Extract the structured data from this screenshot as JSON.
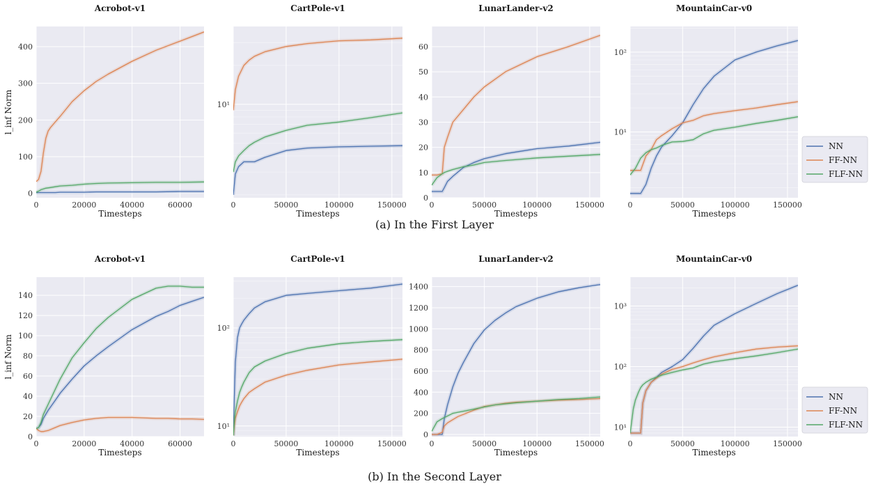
{
  "figure": {
    "legend": [
      {
        "name": "NN",
        "color": "#4c72b0"
      },
      {
        "name": "FF-NN",
        "color": "#dd8452"
      },
      {
        "name": "FLF-NN",
        "color": "#55a868"
      }
    ],
    "rows": [
      {
        "caption": "(a) In the First Layer"
      },
      {
        "caption": "(b) In the Second Layer"
      }
    ]
  },
  "chart_data": [
    {
      "type": "line",
      "title": "Acrobot-v1",
      "xlabel": "Timesteps",
      "ylabel": "l_inf Norm",
      "scale": "linear",
      "xlim": [
        0,
        70000
      ],
      "ylim": [
        -12,
        455
      ],
      "xticks": [
        0,
        20000,
        40000,
        60000
      ],
      "yticks": [
        0,
        100,
        200,
        300,
        400
      ],
      "x": [
        0,
        1000,
        2000,
        3000,
        4000,
        5000,
        6000,
        8000,
        10000,
        15000,
        20000,
        25000,
        30000,
        40000,
        50000,
        60000,
        70000
      ],
      "series": [
        {
          "name": "NN",
          "values": [
            2,
            2,
            2,
            2,
            2,
            2,
            2,
            2,
            3,
            3,
            3,
            4,
            4,
            4,
            4,
            5,
            5
          ]
        },
        {
          "name": "FF-NN",
          "values": [
            32,
            38,
            60,
            110,
            150,
            170,
            180,
            195,
            210,
            250,
            280,
            305,
            325,
            360,
            390,
            415,
            440
          ]
        },
        {
          "name": "FLF-NN",
          "values": [
            3,
            6,
            10,
            12,
            14,
            15,
            16,
            18,
            20,
            22,
            25,
            27,
            28,
            29,
            30,
            30,
            31
          ]
        }
      ]
    },
    {
      "type": "line",
      "title": "CartPole-v1",
      "xlabel": "Timesteps",
      "ylabel": "",
      "scale": "log",
      "xlim": [
        0,
        160000
      ],
      "ylim": [
        1.9,
        40
      ],
      "xticks": [
        0,
        50000,
        100000,
        150000
      ],
      "ytick_labels": [
        {
          "value": 10,
          "label": "10¹"
        }
      ],
      "x": [
        0,
        2000,
        5000,
        10000,
        15000,
        20000,
        30000,
        50000,
        70000,
        100000,
        130000,
        160000
      ],
      "series": [
        {
          "name": "NN",
          "values": [
            2.0,
            2.9,
            3.3,
            3.6,
            3.6,
            3.6,
            3.9,
            4.4,
            4.6,
            4.7,
            4.75,
            4.8
          ]
        },
        {
          "name": "FF-NN",
          "values": [
            9.0,
            13,
            16.5,
            20,
            22,
            23.5,
            25.5,
            28,
            29.5,
            31,
            31.5,
            32.5
          ]
        },
        {
          "name": "FLF-NN",
          "values": [
            3.0,
            3.6,
            4.0,
            4.4,
            4.8,
            5.1,
            5.6,
            6.3,
            6.9,
            7.3,
            7.9,
            8.6
          ]
        }
      ]
    },
    {
      "type": "line",
      "title": "LunarLander-v2",
      "xlabel": "Timesteps",
      "ylabel": "",
      "scale": "linear",
      "xlim": [
        0,
        160000
      ],
      "ylim": [
        0,
        68
      ],
      "xticks": [
        0,
        50000,
        100000,
        150000
      ],
      "yticks": [
        0,
        10,
        20,
        30,
        40,
        50,
        60
      ],
      "x": [
        0,
        5000,
        10000,
        12000,
        15000,
        20000,
        30000,
        40000,
        50000,
        70000,
        100000,
        130000,
        160000
      ],
      "series": [
        {
          "name": "NN",
          "values": [
            2.5,
            2.5,
            2.5,
            4,
            6.5,
            8.5,
            12,
            14,
            15.5,
            17.5,
            19.5,
            20.5,
            22
          ]
        },
        {
          "name": "FF-NN",
          "values": [
            9,
            9,
            9.5,
            20,
            24,
            30,
            35,
            40,
            44,
            50,
            56,
            60,
            64.5
          ]
        },
        {
          "name": "FLF-NN",
          "values": [
            5,
            8,
            9.5,
            10,
            10.5,
            11.2,
            12.3,
            13,
            14,
            14.8,
            15.8,
            16.5,
            17.2
          ]
        }
      ]
    },
    {
      "type": "line",
      "title": "MountainCar-v0",
      "xlabel": "Timesteps",
      "ylabel": "",
      "scale": "log",
      "xlim": [
        0,
        160000
      ],
      "ylim": [
        1.5,
        210
      ],
      "xticks": [
        0,
        50000,
        100000,
        150000
      ],
      "ytick_labels": [
        {
          "value": 10,
          "label": "10¹"
        },
        {
          "value": 100,
          "label": "10²"
        }
      ],
      "x": [
        0,
        5000,
        10000,
        15000,
        20000,
        25000,
        30000,
        40000,
        50000,
        60000,
        70000,
        80000,
        100000,
        120000,
        140000,
        160000
      ],
      "series": [
        {
          "name": "NN",
          "values": [
            1.7,
            1.7,
            1.7,
            2.2,
            3.5,
            5,
            6.5,
            9,
            13,
            22,
            35,
            50,
            80,
            100,
            120,
            140
          ]
        },
        {
          "name": "FF-NN",
          "values": [
            3.3,
            3.3,
            3.3,
            5,
            6,
            8,
            9,
            11,
            13,
            14,
            16,
            17,
            18.5,
            20,
            22,
            24
          ]
        },
        {
          "name": "FLF-NN",
          "values": [
            2.9,
            3.5,
            4.7,
            5.5,
            6,
            6.3,
            6.8,
            7.5,
            7.6,
            8,
            9.5,
            10.5,
            11.5,
            12.8,
            14,
            15.5
          ]
        }
      ]
    },
    {
      "type": "line",
      "title": "Acrobot-v1",
      "xlabel": "Timesteps",
      "ylabel": "l_inf Norm",
      "scale": "linear",
      "xlim": [
        0,
        70000
      ],
      "ylim": [
        0,
        158
      ],
      "xticks": [
        0,
        20000,
        40000,
        60000
      ],
      "yticks": [
        0,
        20,
        40,
        60,
        80,
        100,
        120,
        140
      ],
      "x": [
        0,
        1000,
        2000,
        3000,
        5000,
        8000,
        10000,
        15000,
        20000,
        25000,
        30000,
        40000,
        50000,
        55000,
        60000,
        65000,
        70000
      ],
      "series": [
        {
          "name": "NN",
          "values": [
            8,
            9,
            12,
            18,
            26,
            36,
            43,
            57,
            70,
            80,
            89,
            106,
            119,
            124,
            130,
            134,
            138
          ]
        },
        {
          "name": "FF-NN",
          "values": [
            8,
            6,
            5,
            5,
            6,
            9,
            11,
            14,
            16.5,
            18,
            19,
            19,
            18,
            18,
            17.5,
            17.5,
            17
          ]
        },
        {
          "name": "FLF-NN",
          "values": [
            8,
            9,
            14,
            22,
            32,
            47,
            57,
            78,
            93,
            107,
            118,
            136,
            147,
            149,
            149,
            148,
            148
          ]
        }
      ]
    },
    {
      "type": "line",
      "title": "CartPole-v1",
      "xlabel": "Timesteps",
      "ylabel": "",
      "scale": "log",
      "xlim": [
        0,
        160000
      ],
      "ylim": [
        7.8,
        330
      ],
      "xticks": [
        0,
        50000,
        100000,
        150000
      ],
      "ytick_labels": [
        {
          "value": 10,
          "label": "10¹"
        },
        {
          "value": 100,
          "label": "10²"
        }
      ],
      "x": [
        0,
        1000,
        2000,
        4000,
        6000,
        8000,
        10000,
        15000,
        20000,
        30000,
        50000,
        70000,
        100000,
        130000,
        160000
      ],
      "series": [
        {
          "name": "NN",
          "values": [
            8,
            20,
            45,
            80,
            100,
            110,
            120,
            140,
            160,
            185,
            215,
            225,
            240,
            255,
            280
          ]
        },
        {
          "name": "FF-NN",
          "values": [
            8,
            10,
            12,
            14,
            16,
            17.5,
            19,
            22,
            24,
            28,
            33,
            37,
            42,
            45,
            48
          ]
        },
        {
          "name": "FLF-NN",
          "values": [
            8,
            11,
            14,
            18,
            22,
            25,
            28,
            35,
            40,
            46,
            55,
            62,
            69,
            73,
            76
          ]
        }
      ]
    },
    {
      "type": "line",
      "title": "LunarLander-v2",
      "xlabel": "Timesteps",
      "ylabel": "",
      "scale": "linear",
      "xlim": [
        0,
        160000
      ],
      "ylim": [
        -20,
        1490
      ],
      "xticks": [
        0,
        50000,
        100000,
        150000
      ],
      "yticks": [
        0,
        200,
        400,
        600,
        800,
        1000,
        1200,
        1400
      ],
      "x": [
        0,
        5000,
        10000,
        12000,
        15000,
        20000,
        25000,
        30000,
        40000,
        50000,
        60000,
        70000,
        80000,
        100000,
        120000,
        140000,
        160000
      ],
      "series": [
        {
          "name": "NN",
          "values": [
            0,
            0,
            0,
            150,
            280,
            450,
            580,
            680,
            860,
            990,
            1080,
            1150,
            1210,
            1290,
            1350,
            1390,
            1420
          ]
        },
        {
          "name": "FF-NN",
          "values": [
            0,
            0,
            20,
            80,
            110,
            140,
            170,
            190,
            230,
            265,
            280,
            295,
            305,
            315,
            325,
            330,
            340
          ]
        },
        {
          "name": "FLF-NN",
          "values": [
            30,
            120,
            150,
            160,
            175,
            200,
            210,
            220,
            240,
            260,
            280,
            290,
            300,
            315,
            330,
            340,
            355
          ]
        }
      ]
    },
    {
      "type": "line",
      "title": "MountainCar-v0",
      "xlabel": "Timesteps",
      "ylabel": "",
      "scale": "log",
      "xlim": [
        0,
        160000
      ],
      "ylim": [
        7,
        3000
      ],
      "xticks": [
        0,
        50000,
        100000,
        150000
      ],
      "ytick_labels": [
        {
          "value": 10,
          "label": "10¹"
        },
        {
          "value": 100,
          "label": "10²"
        },
        {
          "value": 1000,
          "label": "10³"
        }
      ],
      "x": [
        0,
        3000,
        5000,
        8000,
        10000,
        12000,
        15000,
        20000,
        30000,
        40000,
        50000,
        60000,
        70000,
        80000,
        100000,
        120000,
        140000,
        160000
      ],
      "series": [
        {
          "name": "NN",
          "values": [
            8,
            8,
            8,
            8,
            8,
            25,
            40,
            55,
            80,
            100,
            130,
            200,
            320,
            480,
            750,
            1100,
            1600,
            2200
          ]
        },
        {
          "name": "FF-NN",
          "values": [
            8,
            8,
            8,
            8,
            8,
            25,
            40,
            55,
            75,
            90,
            100,
            115,
            130,
            145,
            170,
            195,
            210,
            220
          ]
        },
        {
          "name": "FLF-NN",
          "values": [
            8,
            20,
            28,
            38,
            45,
            50,
            55,
            62,
            72,
            80,
            88,
            95,
            110,
            120,
            135,
            150,
            170,
            195
          ]
        }
      ]
    }
  ]
}
